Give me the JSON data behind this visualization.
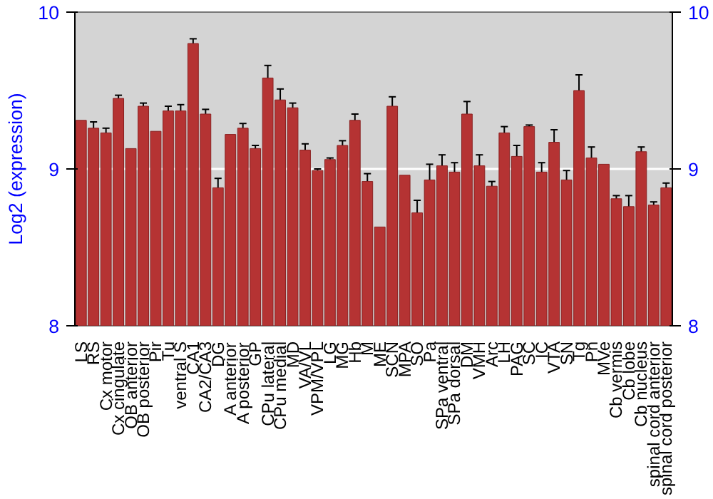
{
  "chart_data": {
    "type": "bar",
    "ylabel": "Log2 (expression)",
    "categories": [
      "LS",
      "RS",
      "Cx motor",
      "Cx cingulate",
      "OB anterior",
      "OB posterior",
      "Pir",
      "Tu",
      "ventral S",
      "CA1",
      "CA2/CA3",
      "DG",
      "A anterior",
      "A posterior",
      "GP",
      "CPu lateral",
      "CPu medial",
      "MD",
      "VA/VL",
      "VPM/VPL",
      "LG",
      "MG",
      "Hb",
      "M",
      "ME",
      "SCN",
      "MPA",
      "SO",
      "Pa",
      "SPa ventral",
      "SPa dorsal",
      "DM",
      "VMH",
      "Arc",
      "LH",
      "PAG",
      "SC",
      "IC",
      "VTA",
      "SN",
      "Tg",
      "Pn",
      "MVe",
      "Cb vermis",
      "Cb lobe",
      "Cb nucleus",
      "spinal cord anterior",
      "spinal cord posterior"
    ],
    "values": [
      9.31,
      9.26,
      9.23,
      9.45,
      9.13,
      9.4,
      9.24,
      9.37,
      9.37,
      9.8,
      9.35,
      8.88,
      9.22,
      9.26,
      9.13,
      9.58,
      9.44,
      9.39,
      9.12,
      8.99,
      9.06,
      9.15,
      9.31,
      8.92,
      8.63,
      9.4,
      8.96,
      8.72,
      8.93,
      9.02,
      8.98,
      9.35,
      9.02,
      8.89,
      9.23,
      9.08,
      9.27,
      8.98,
      9.17,
      8.93,
      9.5,
      9.07,
      9.03,
      8.81,
      8.76,
      9.11,
      8.77,
      8.88
    ],
    "errors": [
      null,
      0.04,
      0.03,
      0.02,
      null,
      0.02,
      null,
      0.03,
      0.04,
      0.03,
      0.03,
      0.06,
      null,
      0.03,
      0.02,
      0.08,
      0.07,
      0.03,
      0.04,
      0.01,
      0.01,
      0.03,
      0.04,
      0.05,
      null,
      0.06,
      null,
      0.08,
      0.1,
      0.07,
      0.06,
      0.08,
      0.07,
      0.03,
      0.04,
      0.07,
      0.01,
      0.06,
      0.08,
      0.06,
      0.1,
      0.07,
      null,
      0.02,
      0.07,
      0.03,
      0.02,
      0.03
    ],
    "color": "#b53333",
    "ylim": [
      8,
      10
    ],
    "yticks": [
      8,
      9,
      10
    ],
    "y2lim": [
      8,
      10
    ],
    "y2ticks": [
      8,
      9,
      10
    ],
    "grid": "y"
  }
}
